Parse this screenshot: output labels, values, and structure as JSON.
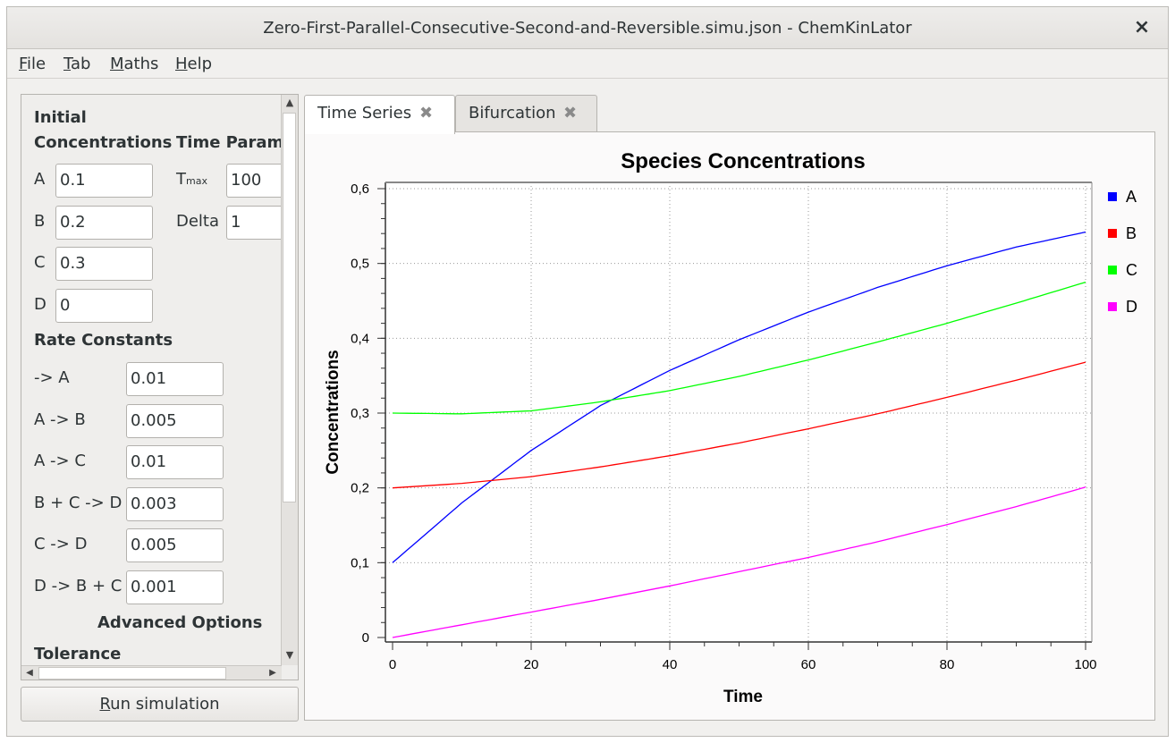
{
  "window": {
    "title": "Zero-First-Parallel-Consecutive-Second-and-Reversible.simu.json - ChemKinLator",
    "close_glyph": "×"
  },
  "menu": {
    "file": {
      "mnemonic": "F",
      "rest": "ile"
    },
    "tab": {
      "mnemonic": "T",
      "rest": "ab"
    },
    "maths": {
      "mnemonic": "M",
      "rest": "aths"
    },
    "help": {
      "mnemonic": "H",
      "rest": "elp"
    }
  },
  "left_panel": {
    "initial_heading_1": "Initial",
    "initial_heading_2": "Concentrations",
    "time_heading": "Time Parameters",
    "species": [
      {
        "label": "A",
        "value": "0.1"
      },
      {
        "label": "B",
        "value": "0.2"
      },
      {
        "label": "C",
        "value": "0.3"
      },
      {
        "label": "D",
        "value": "0"
      }
    ],
    "time_params": {
      "tmax_main": "T",
      "tmax_sub": "max",
      "tmax_value": "100",
      "delta_label": "Delta",
      "delta_value": "1"
    },
    "rate_heading": "Rate Constants",
    "rates": [
      {
        "label": "-> A",
        "value": "0.01"
      },
      {
        "label": "A -> B",
        "value": "0.005"
      },
      {
        "label": "A -> C",
        "value": "0.01"
      },
      {
        "label": "B + C -> D",
        "value": "0.003"
      },
      {
        "label": "C -> D",
        "value": "0.005"
      },
      {
        "label": "D -> B + C",
        "value": "0.001"
      }
    ],
    "advanced_heading": "Advanced Options",
    "tolerance_heading": "Tolerance"
  },
  "run_button": {
    "mnemonic": "R",
    "rest": "un simulation"
  },
  "tabs": [
    {
      "label": "Time Series",
      "active": true
    },
    {
      "label": "Bifurcation",
      "active": false
    }
  ],
  "tab_close_glyph": "✖",
  "chart_data": {
    "type": "line",
    "title": "Species Concentrations",
    "xlabel": "Time",
    "ylabel": "Concentrations",
    "xlim": [
      0,
      100
    ],
    "ylim": [
      0,
      0.6
    ],
    "x_ticks": [
      "0",
      "20",
      "40",
      "60",
      "80",
      "100"
    ],
    "y_ticks": [
      "0",
      "0,1",
      "0,2",
      "0,3",
      "0,4",
      "0,5",
      "0,6"
    ],
    "grid": true,
    "legend_position": "right",
    "x": [
      0,
      10,
      20,
      30,
      40,
      50,
      60,
      70,
      80,
      90,
      100
    ],
    "series": [
      {
        "name": "A",
        "color": "#0000ff",
        "values": [
          0.1,
          0.18,
          0.25,
          0.31,
          0.357,
          0.398,
          0.435,
          0.468,
          0.497,
          0.522,
          0.542
        ]
      },
      {
        "name": "B",
        "color": "#ff0000",
        "values": [
          0.2,
          0.206,
          0.215,
          0.228,
          0.243,
          0.26,
          0.279,
          0.299,
          0.321,
          0.344,
          0.368
        ]
      },
      {
        "name": "C",
        "color": "#00ff00",
        "values": [
          0.3,
          0.299,
          0.303,
          0.315,
          0.33,
          0.349,
          0.371,
          0.395,
          0.42,
          0.447,
          0.475
        ]
      },
      {
        "name": "D",
        "color": "#ff00ff",
        "values": [
          0.0,
          0.017,
          0.034,
          0.051,
          0.069,
          0.088,
          0.107,
          0.128,
          0.151,
          0.175,
          0.201
        ]
      }
    ]
  }
}
